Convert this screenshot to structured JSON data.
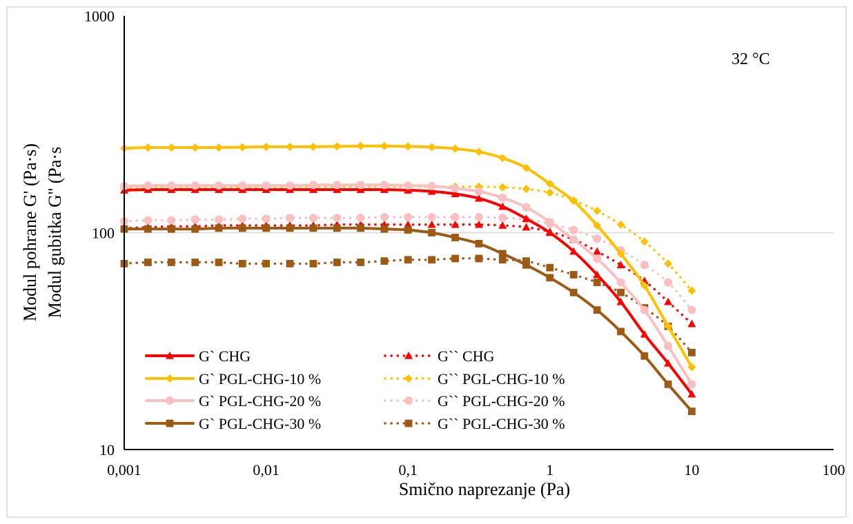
{
  "chart_data": {
    "type": "line",
    "x_scale": "log",
    "y_scale": "log",
    "xlim": [
      0.001,
      100
    ],
    "ylim": [
      10,
      1000
    ],
    "x_ticks": [
      "0,001",
      "0,01",
      "0,1",
      "1",
      "10",
      "100"
    ],
    "y_ticks": [
      "10",
      "100",
      "1000"
    ],
    "xlabel": "Smično naprezanje (Pa)",
    "ylabel_line1": "Modul pohrane G' (Pa·s)",
    "ylabel_line2": "Modul gubitka G'' (Pa·s",
    "annotation": "32 °C",
    "grid": "horizontal",
    "legend_position": "bottom-left inside",
    "x": [
      0.001,
      0.00147,
      0.00215,
      0.00316,
      0.00464,
      0.00681,
      0.01,
      0.0147,
      0.0215,
      0.0316,
      0.0464,
      0.0681,
      0.1,
      0.147,
      0.215,
      0.316,
      0.464,
      0.681,
      1.0,
      1.47,
      2.15,
      3.16,
      4.64,
      6.81,
      10.0
    ],
    "series": [
      {
        "name": "G` CHG",
        "color": "#ff0000",
        "dash": "solid",
        "marker": "triangle",
        "values": [
          157,
          158,
          158,
          158,
          158,
          158,
          158,
          158,
          158,
          158,
          158,
          158,
          157,
          155,
          151,
          144,
          132,
          116,
          100,
          82,
          64,
          48,
          34,
          25,
          18
        ]
      },
      {
        "name": "G`` CHG",
        "color": "#ff0000",
        "dash": "dotted",
        "marker": "triangle",
        "values": [
          105,
          106,
          107,
          107,
          108,
          108,
          108,
          108,
          108,
          109,
          109,
          109,
          109,
          109,
          109,
          109,
          108,
          106,
          101,
          93,
          82,
          71,
          60,
          48,
          38
        ]
      },
      {
        "name": "G` PGL-CHG-10 %",
        "color": "#ffc000",
        "dash": "solid",
        "marker": "diamond",
        "values": [
          245,
          247,
          247,
          247,
          247,
          248,
          249,
          249,
          249,
          250,
          251,
          251,
          250,
          248,
          244,
          236,
          221,
          199,
          168,
          140,
          108,
          80,
          57,
          37,
          24
        ]
      },
      {
        "name": "G`` PGL-CHG-10 %",
        "color": "#ffc000",
        "dash": "dotted",
        "marker": "diamond",
        "values": [
          160,
          161,
          161,
          161,
          162,
          162,
          162,
          162,
          163,
          163,
          163,
          163,
          163,
          163,
          163,
          163,
          162,
          159,
          153,
          141,
          126,
          109,
          91,
          72,
          54
        ]
      },
      {
        "name": "G` PGL-CHG-20 %",
        "color": "#f8c0c0",
        "dash": "solid",
        "marker": "circle",
        "values": [
          164,
          165,
          165,
          165,
          165,
          165,
          165,
          165,
          166,
          166,
          166,
          166,
          165,
          164,
          160,
          155,
          145,
          131,
          112,
          93,
          76,
          59,
          44,
          30,
          20
        ]
      },
      {
        "name": "G`` PGL-CHG-20 %",
        "color": "#f8c0c0",
        "dash": "dotted",
        "marker": "circle",
        "values": [
          113,
          114,
          114,
          115,
          115,
          116,
          116,
          117,
          117,
          117,
          117,
          118,
          118,
          118,
          118,
          118,
          117,
          115,
          110,
          103,
          94,
          83,
          71,
          59,
          44
        ]
      },
      {
        "name": "G` PGL-CHG-30 %",
        "color": "#9c5a14",
        "dash": "solid",
        "marker": "square",
        "values": [
          104,
          104,
          104,
          104,
          105,
          105,
          105,
          105,
          105,
          105,
          105,
          104,
          103,
          100,
          95,
          89,
          80,
          71,
          62,
          53,
          44,
          35,
          27,
          20,
          15
        ]
      },
      {
        "name": "G`` PGL-CHG-30 %",
        "color": "#9c5a14",
        "dash": "dotted",
        "marker": "square",
        "values": [
          72,
          73,
          73,
          73,
          73,
          72,
          72,
          72,
          72,
          73,
          73,
          74,
          75,
          75,
          76,
          76,
          75,
          74,
          69,
          64,
          59,
          53,
          45,
          37,
          28
        ]
      }
    ]
  }
}
